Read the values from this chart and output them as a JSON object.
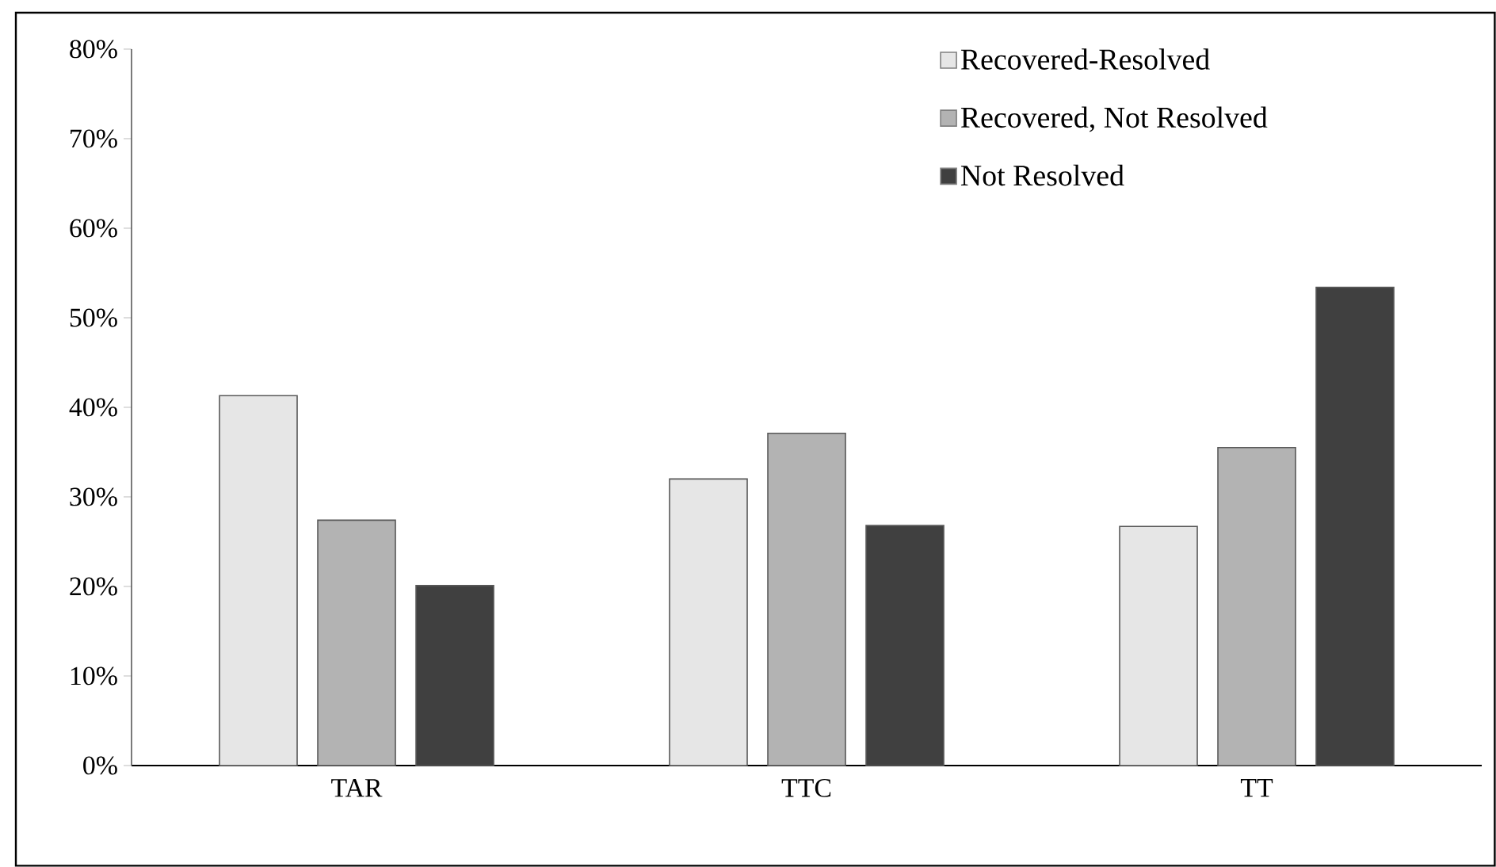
{
  "chart_data": {
    "type": "bar",
    "categories": [
      "TAR",
      "TTC",
      "TT"
    ],
    "series": [
      {
        "name": "Recovered-Resolved",
        "color": "#e6e6e6",
        "values": [
          41.3,
          32.0,
          26.7
        ]
      },
      {
        "name": "Recovered, Not Resolved",
        "color": "#b3b3b3",
        "values": [
          27.4,
          37.1,
          35.5
        ]
      },
      {
        "name": "Not Resolved",
        "color": "#404040",
        "values": [
          20.1,
          26.8,
          53.4
        ]
      }
    ],
    "ylim": [
      0,
      80
    ],
    "yticks": [
      {
        "value": 0,
        "label": "0%"
      },
      {
        "value": 10,
        "label": "10%"
      },
      {
        "value": 20,
        "label": "20%"
      },
      {
        "value": 30,
        "label": "30%"
      },
      {
        "value": 40,
        "label": "40%"
      },
      {
        "value": 50,
        "label": "50%"
      },
      {
        "value": 60,
        "label": "60%"
      },
      {
        "value": 70,
        "label": "70%"
      },
      {
        "value": 80,
        "label": "80%"
      }
    ],
    "grid": false,
    "legend": "top right"
  }
}
